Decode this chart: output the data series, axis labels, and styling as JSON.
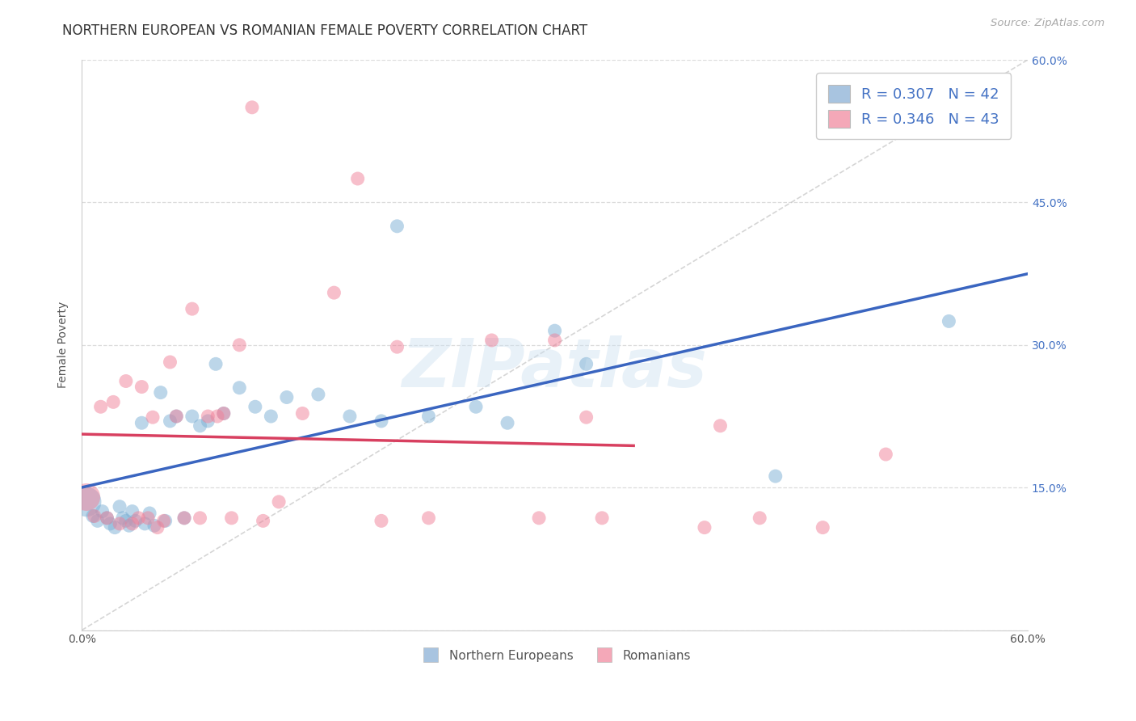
{
  "title": "NORTHERN EUROPEAN VS ROMANIAN FEMALE POVERTY CORRELATION CHART",
  "source": "Source: ZipAtlas.com",
  "ylabel": "Female Poverty",
  "watermark": "ZIPatlas",
  "xlim": [
    0.0,
    0.6
  ],
  "ylim": [
    0.0,
    0.6
  ],
  "legend_entry1_color": "#a8c4e0",
  "legend_entry2_color": "#f4a8b8",
  "legend_entry1_r": "R = 0.307",
  "legend_entry1_n": "N = 42",
  "legend_entry2_r": "R = 0.346",
  "legend_entry2_n": "N = 43",
  "group1_name": "Northern Europeans",
  "group2_name": "Romanians",
  "group1_color": "#7bafd4",
  "group2_color": "#f08098",
  "trend1_color": "#3a65c0",
  "trend2_color": "#d84060",
  "ref_line_color": "#c8c8c8",
  "background_color": "#ffffff",
  "grid_color": "#d8d8d8",
  "title_fontsize": 12,
  "source_fontsize": 9.5,
  "axis_label_fontsize": 10,
  "tick_fontsize": 10,
  "legend_fontsize": 13,
  "group1_x": [
    0.003,
    0.007,
    0.01,
    0.013,
    0.016,
    0.018,
    0.021,
    0.024,
    0.026,
    0.028,
    0.03,
    0.032,
    0.034,
    0.038,
    0.04,
    0.043,
    0.046,
    0.05,
    0.053,
    0.056,
    0.06,
    0.065,
    0.07,
    0.075,
    0.08,
    0.085,
    0.09,
    0.1,
    0.11,
    0.12,
    0.13,
    0.15,
    0.17,
    0.19,
    0.2,
    0.22,
    0.25,
    0.27,
    0.3,
    0.32,
    0.44,
    0.55
  ],
  "group1_y": [
    0.135,
    0.12,
    0.115,
    0.125,
    0.118,
    0.112,
    0.108,
    0.13,
    0.118,
    0.115,
    0.11,
    0.125,
    0.115,
    0.218,
    0.112,
    0.123,
    0.11,
    0.25,
    0.115,
    0.22,
    0.225,
    0.118,
    0.225,
    0.215,
    0.22,
    0.28,
    0.228,
    0.255,
    0.235,
    0.225,
    0.245,
    0.248,
    0.225,
    0.22,
    0.425,
    0.225,
    0.235,
    0.218,
    0.315,
    0.28,
    0.162,
    0.325
  ],
  "group1_sizes": [
    700,
    150,
    150,
    150,
    150,
    150,
    150,
    150,
    150,
    150,
    150,
    150,
    150,
    150,
    150,
    150,
    150,
    150,
    150,
    150,
    150,
    150,
    150,
    150,
    150,
    150,
    150,
    150,
    150,
    150,
    150,
    150,
    150,
    150,
    150,
    150,
    150,
    150,
    150,
    150,
    150,
    150
  ],
  "group2_x": [
    0.003,
    0.008,
    0.012,
    0.016,
    0.02,
    0.024,
    0.028,
    0.032,
    0.036,
    0.038,
    0.042,
    0.045,
    0.048,
    0.052,
    0.056,
    0.06,
    0.065,
    0.07,
    0.075,
    0.08,
    0.086,
    0.09,
    0.095,
    0.1,
    0.108,
    0.115,
    0.125,
    0.14,
    0.16,
    0.175,
    0.19,
    0.2,
    0.22,
    0.26,
    0.29,
    0.32,
    0.33,
    0.395,
    0.405,
    0.43,
    0.47,
    0.51,
    0.3
  ],
  "group2_y": [
    0.14,
    0.12,
    0.235,
    0.118,
    0.24,
    0.112,
    0.262,
    0.112,
    0.118,
    0.256,
    0.118,
    0.224,
    0.108,
    0.115,
    0.282,
    0.225,
    0.118,
    0.338,
    0.118,
    0.225,
    0.225,
    0.228,
    0.118,
    0.3,
    0.55,
    0.115,
    0.135,
    0.228,
    0.355,
    0.475,
    0.115,
    0.298,
    0.118,
    0.305,
    0.118,
    0.224,
    0.118,
    0.108,
    0.215,
    0.118,
    0.108,
    0.185,
    0.305
  ],
  "group2_sizes": [
    600,
    150,
    150,
    150,
    150,
    150,
    150,
    150,
    150,
    150,
    150,
    150,
    150,
    150,
    150,
    150,
    150,
    150,
    150,
    150,
    150,
    150,
    150,
    150,
    150,
    150,
    150,
    150,
    150,
    150,
    150,
    150,
    150,
    150,
    150,
    150,
    150,
    150,
    150,
    150,
    150,
    150,
    150
  ]
}
